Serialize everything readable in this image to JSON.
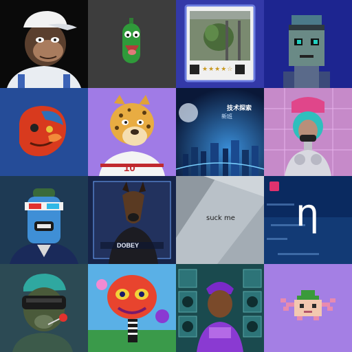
{
  "gallery": {
    "tiles": [
      {
        "name": "ape-with-cap"
      },
      {
        "name": "pickle-character"
      },
      {
        "name": "plant-photo-card",
        "rating": 4,
        "rating_max": 5
      },
      {
        "name": "pixel-punk"
      },
      {
        "name": "red-abstract-face"
      },
      {
        "name": "leopard-jersey",
        "jersey_number": "10"
      },
      {
        "name": "night-city-poster",
        "headline": "技术探索",
        "subline": "新班"
      },
      {
        "name": "cyber-girl"
      },
      {
        "name": "robot-3d-glasses"
      },
      {
        "name": "doberman-poster",
        "caption": "DOBEY"
      },
      {
        "name": "suck-me-text",
        "text": "suck me"
      },
      {
        "name": "eta-logo",
        "symbol": "η",
        "brand": "Eta"
      },
      {
        "name": "ape-with-vr"
      },
      {
        "name": "colorful-painting"
      },
      {
        "name": "dj-character"
      },
      {
        "name": "pixel-axolotl"
      }
    ]
  },
  "colors": {
    "t2_bg": "#3d3d3d",
    "t4_bg": "#1d2590",
    "t6_bg": "#a07be6",
    "t8_bg": "#c68ac9",
    "t16_bg": "#a47fe4"
  }
}
